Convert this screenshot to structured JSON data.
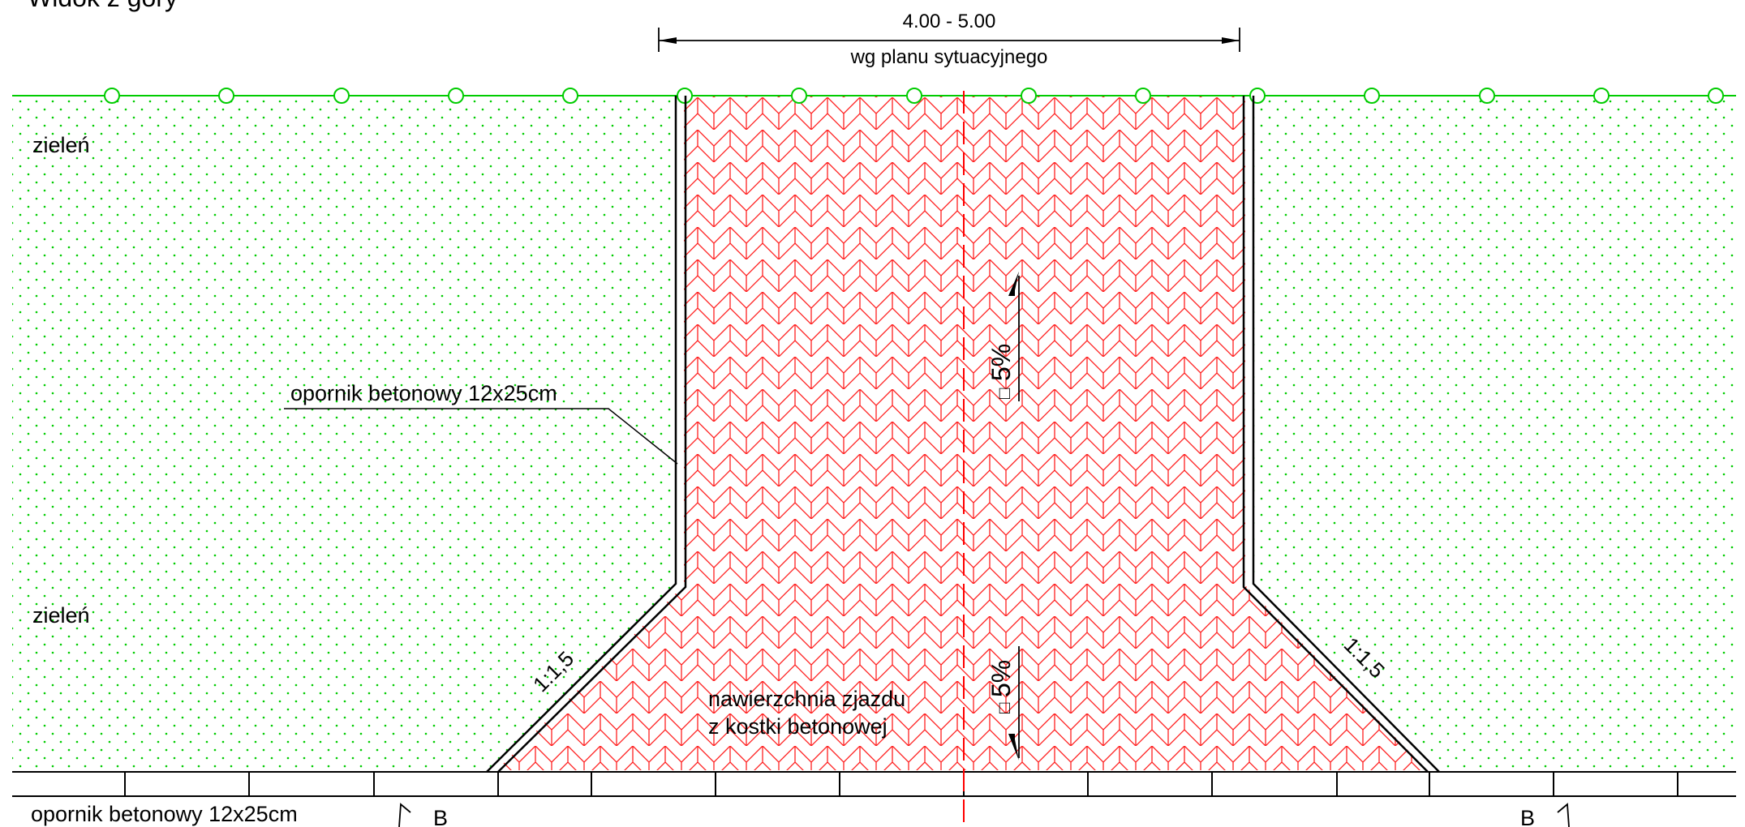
{
  "title": "Widok z góry",
  "dimension": {
    "value": "4.00 - 5.00",
    "note": "wg planu sytuacyjnego"
  },
  "labels": {
    "greenery_top": "zieleń",
    "greenery_bottom": "zieleń",
    "curb_leader": "opornik betonowy 12x25cm",
    "curb_bottom": "opornik betonowy 12x25cm",
    "surface_line1": "nawierzchnia zjazdu",
    "surface_line2": "z kostki betonowej",
    "slope_left": "1:1,5",
    "slope_right": "1:1,5",
    "grade_upper": "5%",
    "grade_lower": "5%",
    "grade_symbol": "□",
    "section_left": "B",
    "section_right": "B"
  },
  "colors": {
    "greenery": "#00cc00",
    "paving": "#ff0000",
    "lines": "#000000"
  }
}
